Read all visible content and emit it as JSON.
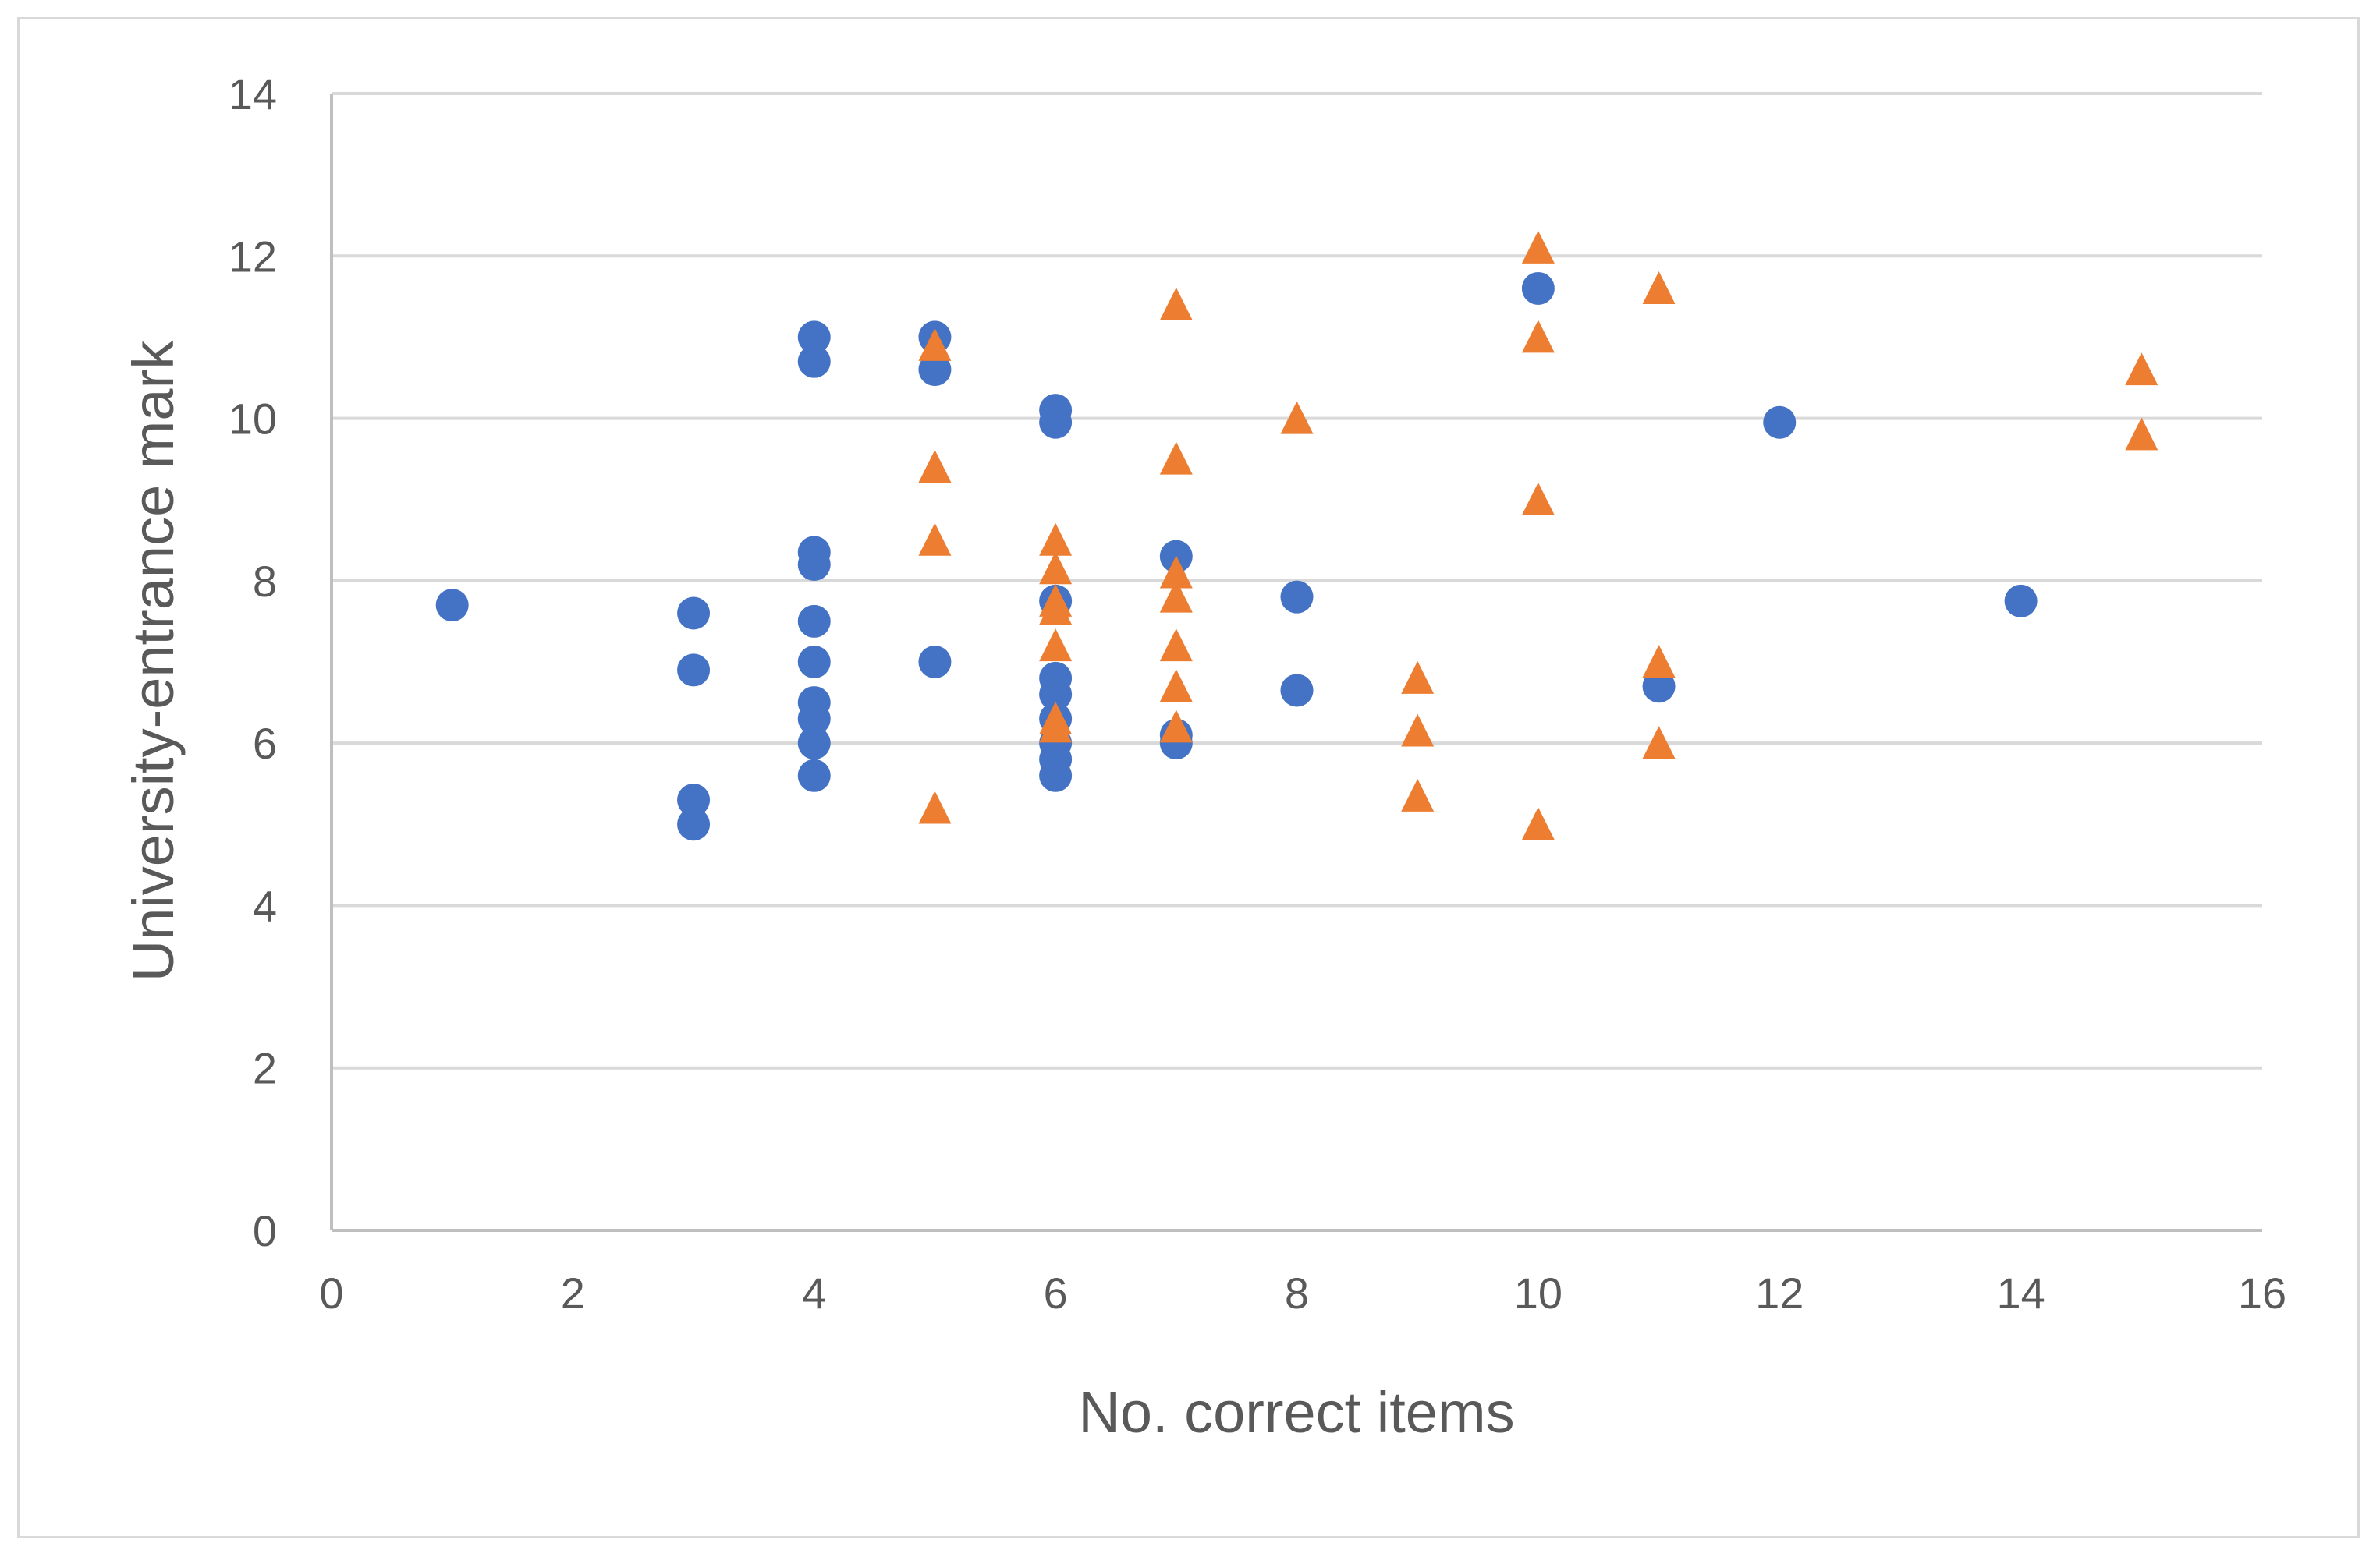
{
  "chart_data": {
    "type": "scatter",
    "title": "",
    "xlabel": "No. correct items",
    "ylabel": "University-entrance mark",
    "xlim": [
      0,
      16
    ],
    "ylim": [
      0,
      14
    ],
    "x_ticks": [
      "0",
      "2",
      "4",
      "6",
      "8",
      "10",
      "12",
      "14",
      "16"
    ],
    "y_ticks": [
      "0",
      "2",
      "4",
      "6",
      "8",
      "10",
      "12",
      "14"
    ],
    "grid": "horizontal",
    "legend": "none",
    "series": [
      {
        "marker": "circle",
        "color": "#4472c4",
        "points": [
          {
            "x": 1,
            "y": 7.7
          },
          {
            "x": 3,
            "y": 7.6
          },
          {
            "x": 3,
            "y": 6.9
          },
          {
            "x": 3,
            "y": 5.3
          },
          {
            "x": 3,
            "y": 5.0
          },
          {
            "x": 4,
            "y": 11.0
          },
          {
            "x": 4,
            "y": 10.7
          },
          {
            "x": 4,
            "y": 8.35
          },
          {
            "x": 4,
            "y": 8.2
          },
          {
            "x": 4,
            "y": 7.5
          },
          {
            "x": 4,
            "y": 7.0
          },
          {
            "x": 4,
            "y": 6.5
          },
          {
            "x": 4,
            "y": 6.3
          },
          {
            "x": 4,
            "y": 6.0
          },
          {
            "x": 4,
            "y": 5.6
          },
          {
            "x": 5,
            "y": 11.0
          },
          {
            "x": 5,
            "y": 10.6
          },
          {
            "x": 5,
            "y": 7.0
          },
          {
            "x": 6,
            "y": 10.1
          },
          {
            "x": 6,
            "y": 9.95
          },
          {
            "x": 6,
            "y": 7.75
          },
          {
            "x": 6,
            "y": 6.8
          },
          {
            "x": 6,
            "y": 6.6
          },
          {
            "x": 6,
            "y": 6.3
          },
          {
            "x": 6,
            "y": 6.0
          },
          {
            "x": 6,
            "y": 5.8
          },
          {
            "x": 6,
            "y": 5.6
          },
          {
            "x": 7,
            "y": 8.3
          },
          {
            "x": 7,
            "y": 6.1
          },
          {
            "x": 7,
            "y": 6.0
          },
          {
            "x": 8,
            "y": 7.8
          },
          {
            "x": 8,
            "y": 6.65
          },
          {
            "x": 10,
            "y": 11.6
          },
          {
            "x": 11,
            "y": 6.7
          },
          {
            "x": 12,
            "y": 9.95
          },
          {
            "x": 14,
            "y": 7.75
          }
        ]
      },
      {
        "marker": "triangle",
        "color": "#ed7d31",
        "points": [
          {
            "x": 5,
            "y": 10.9
          },
          {
            "x": 5,
            "y": 9.4
          },
          {
            "x": 5,
            "y": 8.5
          },
          {
            "x": 5,
            "y": 5.2
          },
          {
            "x": 6,
            "y": 8.5
          },
          {
            "x": 6,
            "y": 8.15
          },
          {
            "x": 6,
            "y": 7.75
          },
          {
            "x": 6,
            "y": 7.65
          },
          {
            "x": 6,
            "y": 7.2
          },
          {
            "x": 6,
            "y": 6.3
          },
          {
            "x": 6,
            "y": 6.2
          },
          {
            "x": 7,
            "y": 11.4
          },
          {
            "x": 7,
            "y": 9.5
          },
          {
            "x": 7,
            "y": 8.1
          },
          {
            "x": 7,
            "y": 7.8
          },
          {
            "x": 7,
            "y": 7.2
          },
          {
            "x": 7,
            "y": 6.7
          },
          {
            "x": 7,
            "y": 6.2
          },
          {
            "x": 8,
            "y": 10.0
          },
          {
            "x": 9,
            "y": 6.8
          },
          {
            "x": 9,
            "y": 6.15
          },
          {
            "x": 9,
            "y": 5.35
          },
          {
            "x": 10,
            "y": 12.1
          },
          {
            "x": 10,
            "y": 11.0
          },
          {
            "x": 10,
            "y": 9.0
          },
          {
            "x": 10,
            "y": 5.0
          },
          {
            "x": 11,
            "y": 11.6
          },
          {
            "x": 11,
            "y": 7.0
          },
          {
            "x": 11,
            "y": 6.0
          },
          {
            "x": 15,
            "y": 10.6
          },
          {
            "x": 15,
            "y": 9.8
          }
        ]
      }
    ]
  }
}
